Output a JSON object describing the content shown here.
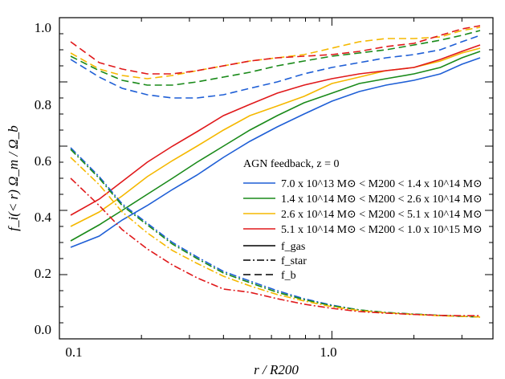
{
  "chart_data": {
    "type": "line",
    "title": "",
    "xlabel": "r / R200",
    "ylabel": "f_i(< r) Ω_m / Ω_b",
    "x_scale": "log",
    "xlim": [
      0.1,
      3.9
    ],
    "ylim": [
      0.0,
      1.0
    ],
    "x_ticks": [
      0.1,
      1.0
    ],
    "x_tick_labels": [
      "0.1",
      "1.0"
    ],
    "y_ticks": [
      0.0,
      0.2,
      0.4,
      0.6,
      0.8,
      1.0
    ],
    "y_tick_labels": [
      "0.0",
      "0.2",
      "0.4",
      "0.6",
      "0.8",
      "1.0"
    ],
    "grid": false,
    "legend_position": "center-right",
    "legend_title": "AGN feedback, z = 0",
    "mass_bins": [
      {
        "label": "7.0 x 10^13 M⊙ < M200 < 1.4 x 10^14 M⊙",
        "color": "#1f5fd6"
      },
      {
        "label": "1.4 x 10^14 M⊙ < M200 < 2.6 x 10^14 M⊙",
        "color": "#1a8a1a"
      },
      {
        "label": "2.6 x 10^14 M⊙ < M200 < 5.1 x 10^14 M⊙",
        "color": "#f5b800"
      },
      {
        "label": "5.1 x 10^14 M⊙ < M200 < 1.0 x 10^15 M⊙",
        "color": "#e0191b"
      }
    ],
    "linestyles": [
      {
        "label": "f_gas",
        "style": "solid"
      },
      {
        "label": "f_star",
        "style": "dashdot"
      },
      {
        "label": "f_b",
        "style": "dashed"
      }
    ],
    "x": [
      0.11,
      0.14,
      0.17,
      0.21,
      0.26,
      0.32,
      0.4,
      0.5,
      0.63,
      0.79,
      1.0,
      1.26,
      1.58,
      2.0,
      2.5,
      3.0,
      3.5
    ],
    "series": [
      {
        "name": "f_gas",
        "color": "#1f5fd6",
        "style": "solid",
        "values": [
          0.285,
          0.32,
          0.37,
          0.415,
          0.465,
          0.51,
          0.565,
          0.615,
          0.66,
          0.7,
          0.74,
          0.77,
          0.79,
          0.805,
          0.825,
          0.855,
          0.875
        ]
      },
      {
        "name": "f_gas",
        "color": "#1a8a1a",
        "style": "solid",
        "values": [
          0.305,
          0.355,
          0.4,
          0.45,
          0.5,
          0.55,
          0.6,
          0.65,
          0.695,
          0.735,
          0.765,
          0.795,
          0.81,
          0.825,
          0.845,
          0.875,
          0.895
        ]
      },
      {
        "name": "f_gas",
        "color": "#f5b800",
        "style": "solid",
        "values": [
          0.35,
          0.395,
          0.445,
          0.505,
          0.555,
          0.6,
          0.65,
          0.695,
          0.725,
          0.755,
          0.795,
          0.815,
          0.835,
          0.845,
          0.865,
          0.89,
          0.905
        ]
      },
      {
        "name": "f_gas",
        "color": "#e0191b",
        "style": "solid",
        "values": [
          0.385,
          0.435,
          0.49,
          0.55,
          0.6,
          0.645,
          0.695,
          0.73,
          0.765,
          0.79,
          0.81,
          0.825,
          0.835,
          0.845,
          0.87,
          0.895,
          0.915
        ]
      },
      {
        "name": "f_star",
        "color": "#1f5fd6",
        "style": "dashdot",
        "values": [
          0.595,
          0.505,
          0.42,
          0.36,
          0.3,
          0.255,
          0.21,
          0.18,
          0.15,
          0.125,
          0.105,
          0.09,
          0.082,
          0.077,
          0.073,
          0.07,
          0.068
        ]
      },
      {
        "name": "f_star",
        "color": "#1a8a1a",
        "style": "dashdot",
        "values": [
          0.59,
          0.5,
          0.415,
          0.355,
          0.295,
          0.25,
          0.205,
          0.175,
          0.145,
          0.122,
          0.103,
          0.09,
          0.082,
          0.077,
          0.073,
          0.07,
          0.068
        ]
      },
      {
        "name": "f_star",
        "color": "#f5b800",
        "style": "dashdot",
        "values": [
          0.565,
          0.48,
          0.395,
          0.33,
          0.275,
          0.235,
          0.195,
          0.165,
          0.138,
          0.118,
          0.1,
          0.088,
          0.081,
          0.076,
          0.072,
          0.07,
          0.068
        ]
      },
      {
        "name": "f_star",
        "color": "#e0191b",
        "style": "dashdot",
        "values": [
          0.5,
          0.415,
          0.34,
          0.28,
          0.23,
          0.19,
          0.155,
          0.145,
          0.125,
          0.108,
          0.095,
          0.085,
          0.08,
          0.076,
          0.073,
          0.072,
          0.072
        ]
      },
      {
        "name": "f_b",
        "color": "#1f5fd6",
        "style": "dashed",
        "values": [
          0.87,
          0.815,
          0.78,
          0.76,
          0.75,
          0.75,
          0.76,
          0.78,
          0.8,
          0.825,
          0.845,
          0.86,
          0.875,
          0.885,
          0.9,
          0.925,
          0.945
        ]
      },
      {
        "name": "f_b",
        "color": "#1a8a1a",
        "style": "dashed",
        "values": [
          0.88,
          0.835,
          0.805,
          0.79,
          0.79,
          0.8,
          0.815,
          0.83,
          0.85,
          0.865,
          0.88,
          0.89,
          0.9,
          0.915,
          0.93,
          0.945,
          0.96
        ]
      },
      {
        "name": "f_b",
        "color": "#f5b800",
        "style": "dashed",
        "values": [
          0.89,
          0.84,
          0.82,
          0.81,
          0.82,
          0.835,
          0.85,
          0.865,
          0.875,
          0.885,
          0.905,
          0.925,
          0.935,
          0.935,
          0.94,
          0.96,
          0.97
        ]
      },
      {
        "name": "f_b",
        "color": "#e0191b",
        "style": "dashed",
        "values": [
          0.925,
          0.86,
          0.84,
          0.825,
          0.825,
          0.835,
          0.85,
          0.865,
          0.875,
          0.88,
          0.885,
          0.895,
          0.91,
          0.92,
          0.945,
          0.965,
          0.975
        ]
      }
    ]
  }
}
